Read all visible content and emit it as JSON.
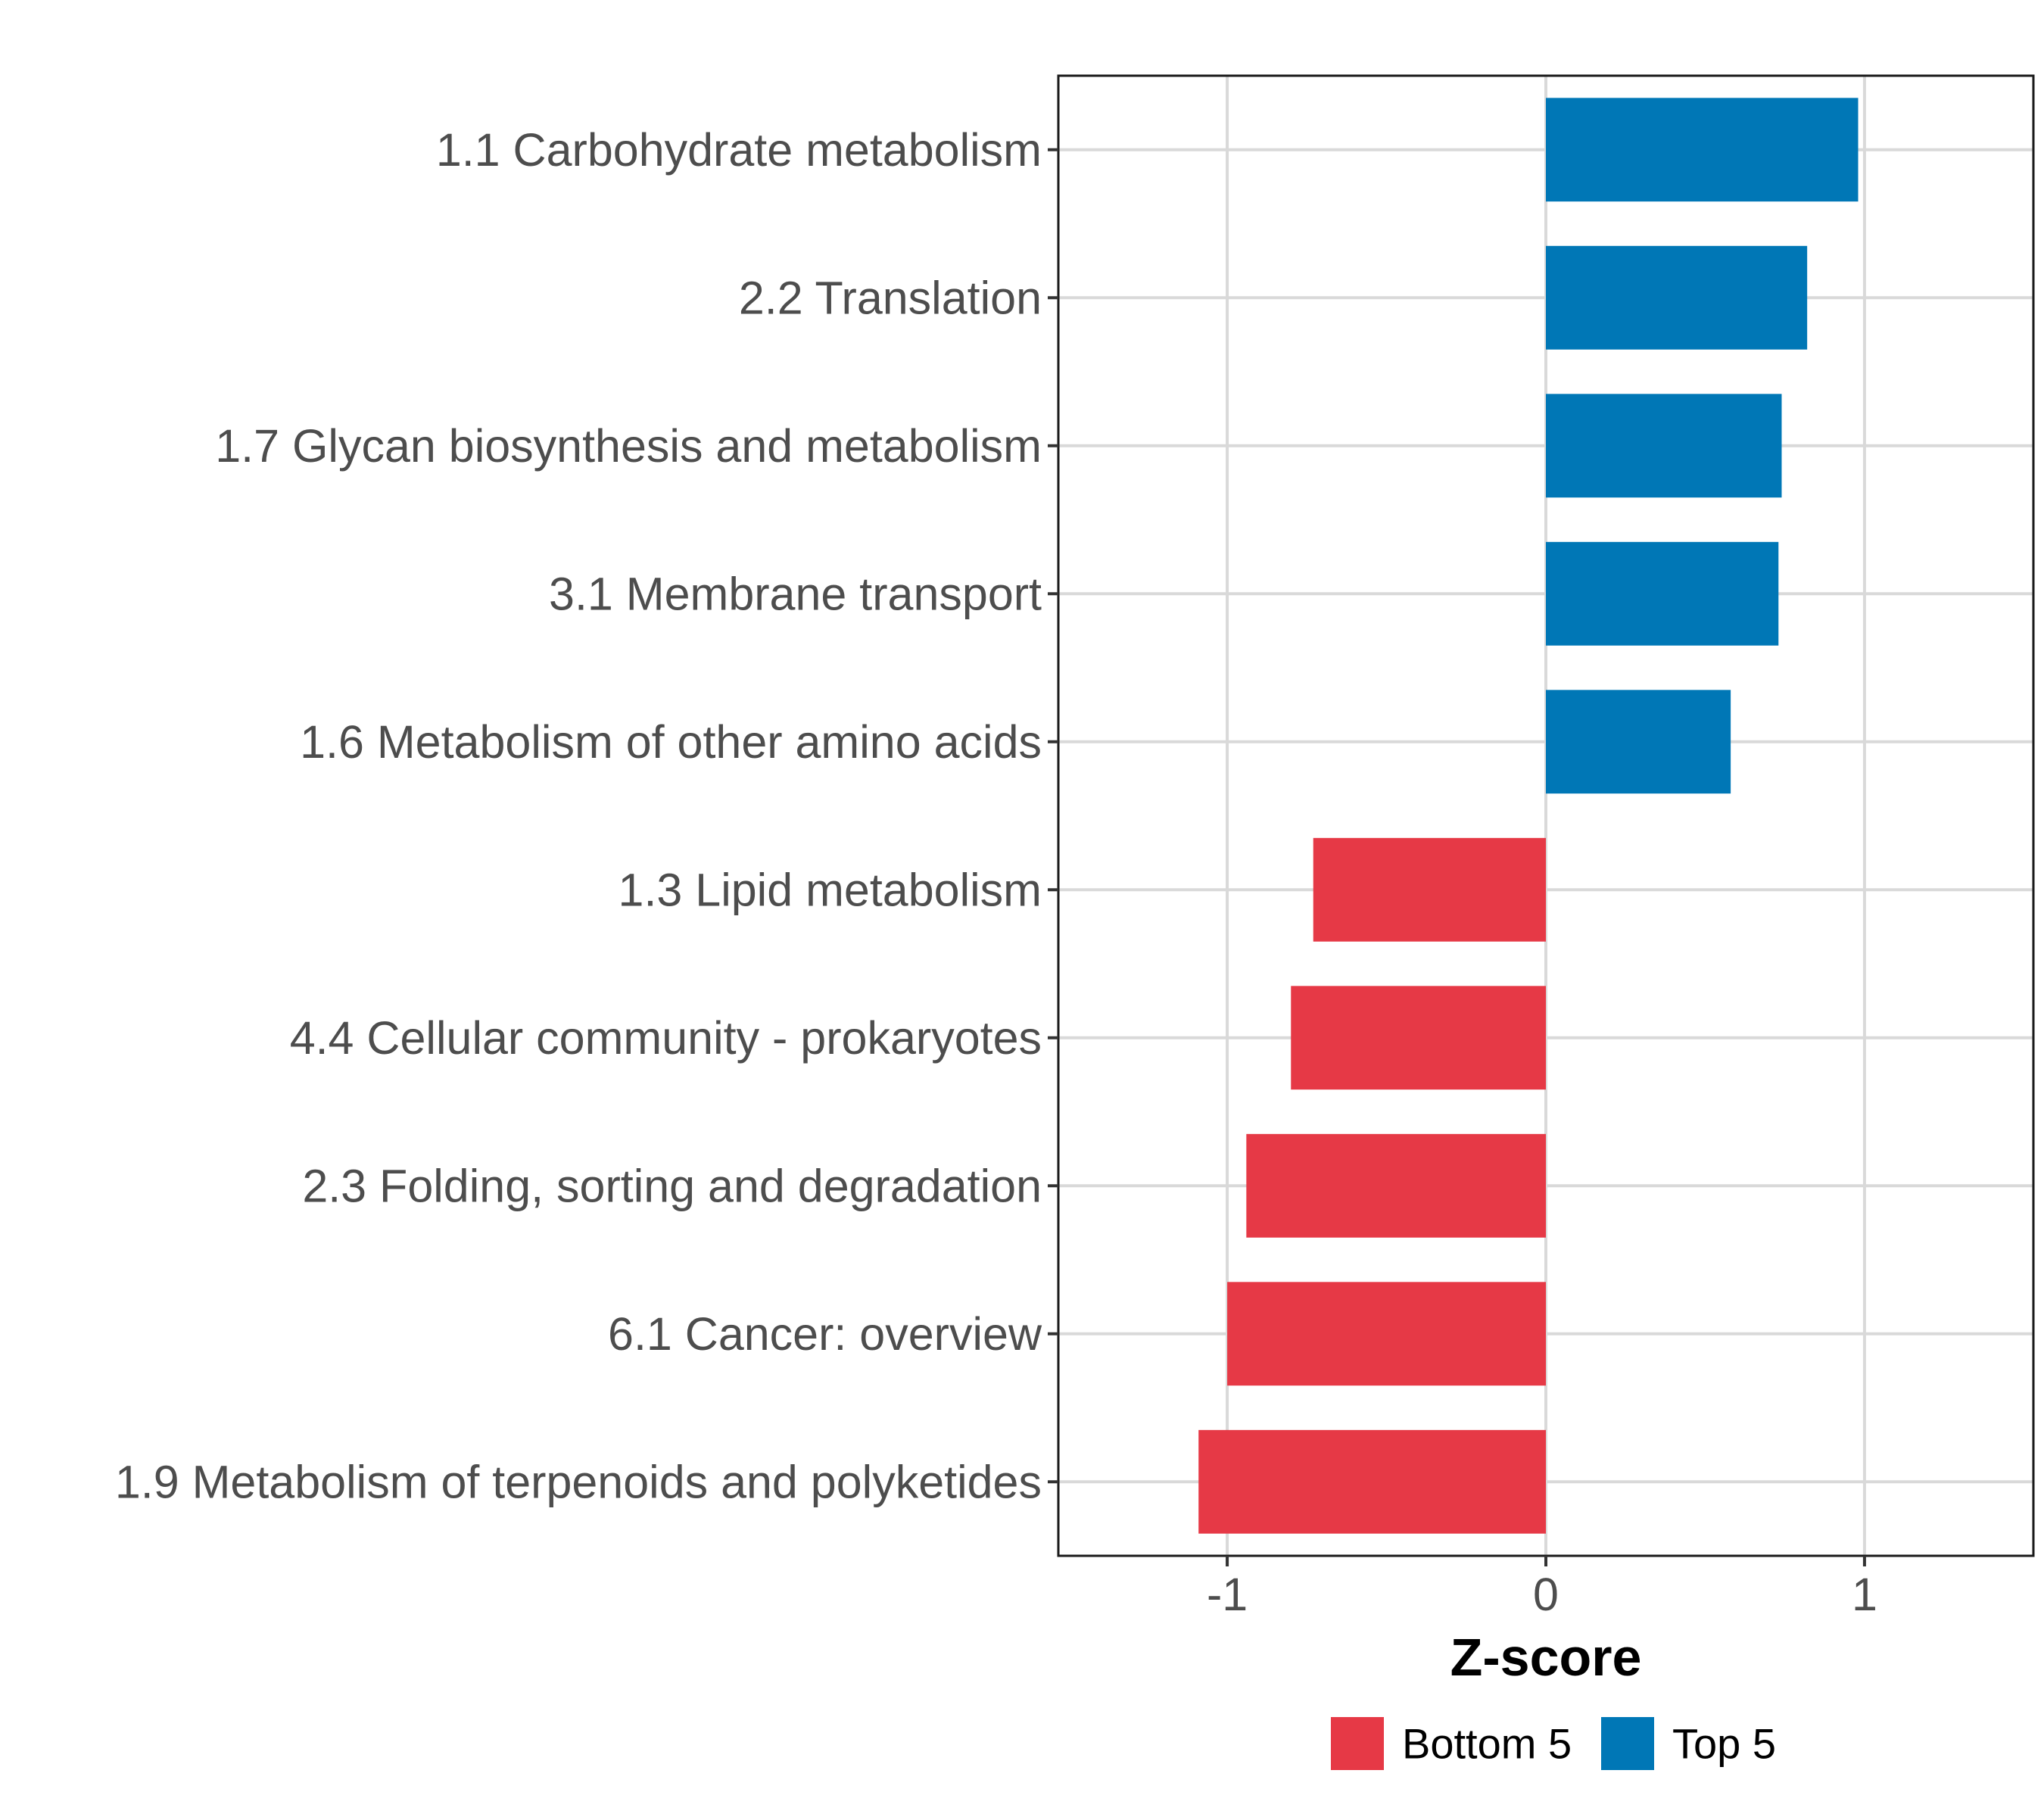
{
  "chart_data": {
    "type": "bar",
    "orientation": "horizontal",
    "categories": [
      "1.1 Carbohydrate metabolism",
      "2.2 Translation",
      "1.7 Glycan biosynthesis and metabolism",
      "3.1 Membrane transport",
      "1.6 Metabolism of other amino acids",
      "1.3 Lipid metabolism",
      "4.4 Cellular community - prokaryotes",
      "2.3 Folding, sorting and degradation",
      "6.1 Cancer: overview",
      "1.9 Metabolism of terpenoids and polyketides"
    ],
    "values": [
      0.98,
      0.82,
      0.74,
      0.73,
      0.58,
      -0.73,
      -0.8,
      -0.94,
      -1.0,
      -1.09
    ],
    "groups": [
      "Top 5",
      "Top 5",
      "Top 5",
      "Top 5",
      "Top 5",
      "Bottom 5",
      "Bottom 5",
      "Bottom 5",
      "Bottom 5",
      "Bottom 5"
    ],
    "xlabel": "Z-score",
    "ylabel": "",
    "xlim": [
      -1.53,
      1.53
    ],
    "xticks": [
      -1,
      0,
      1
    ],
    "xtick_labels": [
      "-1",
      "0",
      "1"
    ],
    "grid": true,
    "legend": {
      "position": "bottom",
      "entries": [
        {
          "label": "Bottom 5",
          "color": "#e63946"
        },
        {
          "label": "Top 5",
          "color": "#0077b6"
        }
      ]
    },
    "colors": {
      "Top 5": "#0077b6",
      "Bottom 5": "#e63946"
    }
  }
}
